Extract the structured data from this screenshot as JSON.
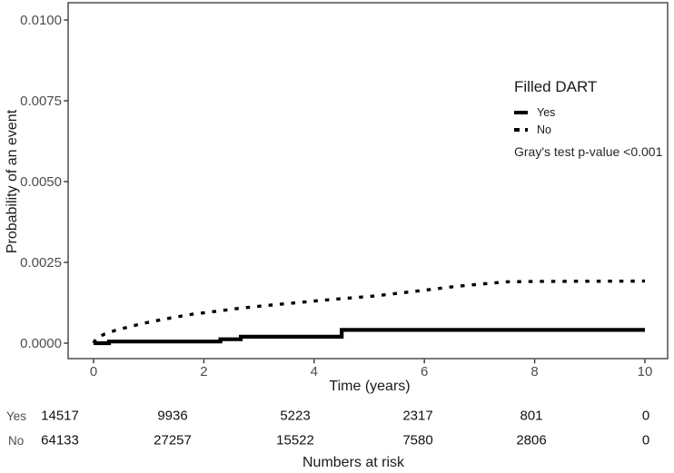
{
  "chart_data": {
    "type": "line",
    "subtype": "cumulative-incidence",
    "title": "",
    "xlabel": "Time (years)",
    "ylabel": "Probability of an event",
    "xlim": [
      0,
      10
    ],
    "ylim": [
      0,
      0.01
    ],
    "x_ticks": [
      "0",
      "2",
      "4",
      "6",
      "8",
      "10"
    ],
    "x_tick_values": [
      0,
      2,
      4,
      6,
      8,
      10
    ],
    "y_ticks": [
      "0.0000",
      "0.0025",
      "0.0050",
      "0.0075",
      "0.0100"
    ],
    "y_tick_values": [
      0,
      0.0025,
      0.005,
      0.0075,
      0.01
    ],
    "grid": false,
    "legend": {
      "title": "Filled DART",
      "position": "inside-top-right",
      "entries": [
        {
          "label": "Yes",
          "line_style": "solid",
          "color": "#000000"
        },
        {
          "label": "No",
          "line_style": "dotted",
          "color": "#000000"
        }
      ]
    },
    "annotation": "Gray's test p-value <0.001",
    "series": [
      {
        "name": "Yes",
        "line_style": "solid",
        "step": true,
        "color": "#000000",
        "points": [
          [
            0,
            0
          ],
          [
            0.28,
            5e-05
          ],
          [
            2.3,
            0.00012
          ],
          [
            2.67,
            0.0002
          ],
          [
            4.5,
            0.00041
          ],
          [
            10,
            0.00041
          ]
        ]
      },
      {
        "name": "No",
        "line_style": "dotted",
        "step": false,
        "color": "#000000",
        "points": [
          [
            0,
            0
          ],
          [
            0.05,
            0.00015
          ],
          [
            0.2,
            0.00028
          ],
          [
            0.4,
            0.0004
          ],
          [
            0.7,
            0.00053
          ],
          [
            1,
            0.00065
          ],
          [
            1.4,
            0.00078
          ],
          [
            1.8,
            0.0009
          ],
          [
            2.2,
            0.00098
          ],
          [
            2.6,
            0.00107
          ],
          [
            3.1,
            0.00116
          ],
          [
            3.6,
            0.00124
          ],
          [
            4.1,
            0.00132
          ],
          [
            4.6,
            0.00139
          ],
          [
            5.1,
            0.00146
          ],
          [
            5.6,
            0.00156
          ],
          [
            6.1,
            0.00166
          ],
          [
            6.6,
            0.00176
          ],
          [
            7.1,
            0.00184
          ],
          [
            7.5,
            0.0019
          ],
          [
            8,
            0.00191
          ],
          [
            10,
            0.00192
          ]
        ]
      }
    ]
  },
  "risk_table": {
    "caption": "Numbers at risk",
    "times": [
      0,
      2,
      4,
      6,
      8,
      10
    ],
    "rows": [
      {
        "label": "Yes",
        "counts": [
          "14517",
          "9936",
          "5223",
          "2317",
          "801",
          "0"
        ]
      },
      {
        "label": "No",
        "counts": [
          "64133",
          "27257",
          "15522",
          "7580",
          "2806",
          "0"
        ]
      }
    ]
  }
}
